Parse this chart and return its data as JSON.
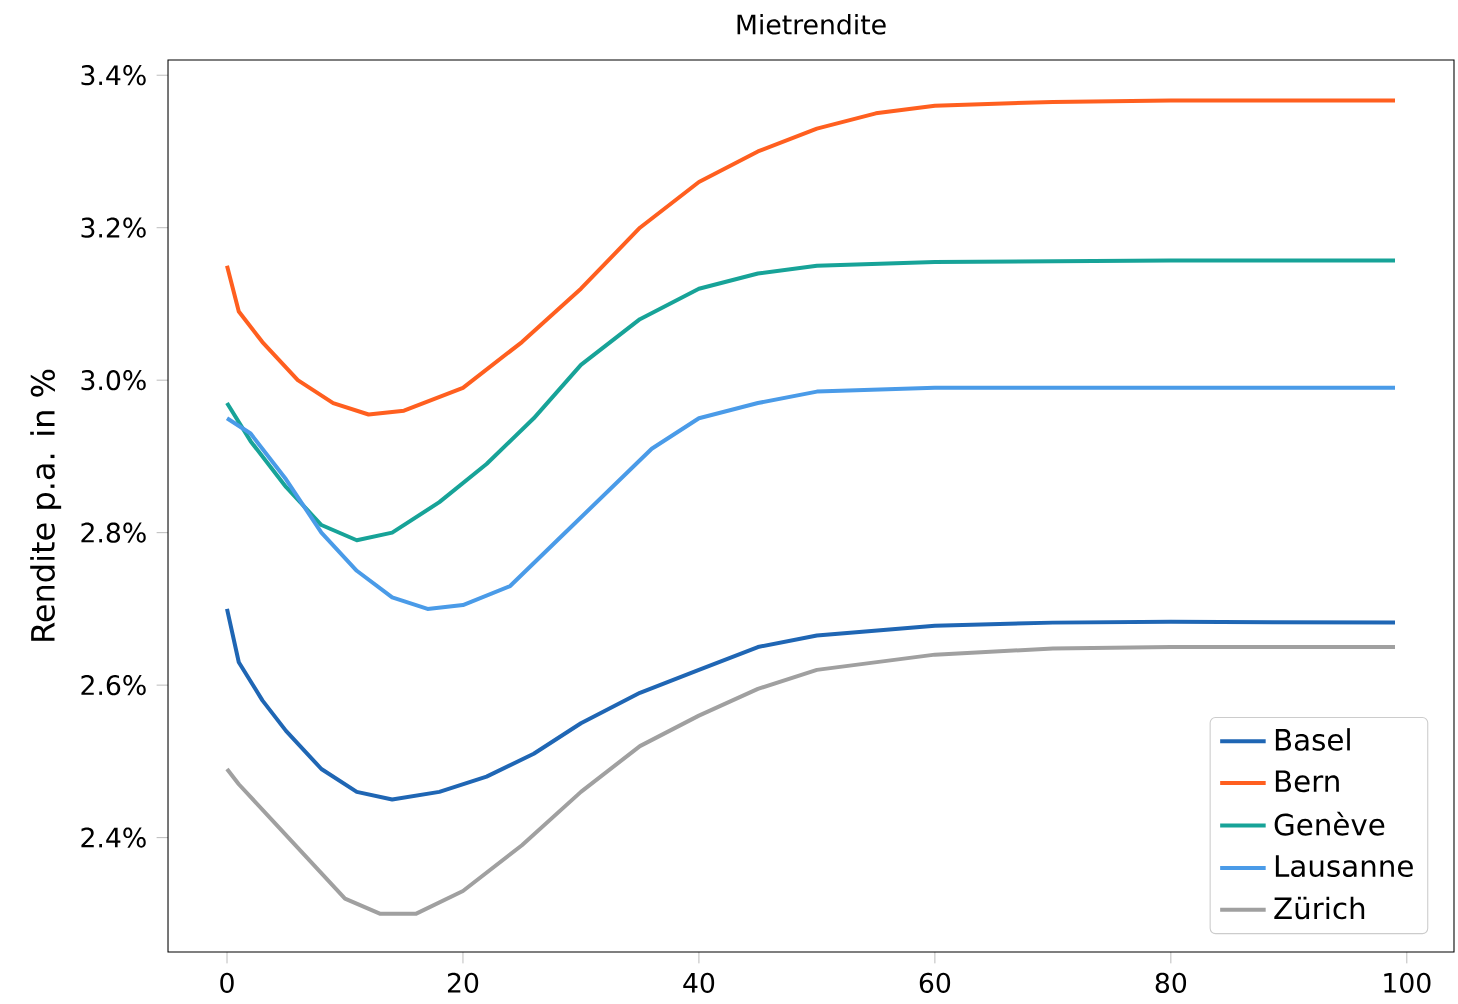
{
  "chart_data": {
    "type": "line",
    "title": "Mietrendite",
    "ylabel": "Rendite p.a. in %",
    "xlim": [
      -5,
      104
    ],
    "ylim": [
      2.25,
      3.42
    ],
    "xticks": [
      0,
      20,
      40,
      60,
      80,
      100
    ],
    "yticks": [
      {
        "value": 2.4,
        "label": "2.4%"
      },
      {
        "value": 2.6,
        "label": "2.6%"
      },
      {
        "value": 2.8,
        "label": "2.8%"
      },
      {
        "value": 3.0,
        "label": "3.0%"
      },
      {
        "value": 3.2,
        "label": "3.2%"
      },
      {
        "value": 3.4,
        "label": "3.4%"
      }
    ],
    "legend": "bottom right",
    "grid": false,
    "marker": "none",
    "line_style": "solid",
    "series": [
      {
        "name": "Basel",
        "color": "#1f66b4",
        "x": [
          0,
          1,
          3,
          5,
          8,
          11,
          14,
          18,
          22,
          26,
          30,
          35,
          40,
          45,
          50,
          60,
          70,
          80,
          99
        ],
        "values": [
          2.7,
          2.63,
          2.58,
          2.54,
          2.49,
          2.46,
          2.45,
          2.46,
          2.48,
          2.51,
          2.55,
          2.59,
          2.62,
          2.65,
          2.665,
          2.678,
          2.682,
          2.683,
          2.682
        ]
      },
      {
        "name": "Bern",
        "color": "#ff5f1f",
        "x": [
          0,
          1,
          3,
          6,
          9,
          12,
          15,
          20,
          25,
          30,
          35,
          40,
          45,
          50,
          55,
          60,
          70,
          80,
          99
        ],
        "values": [
          3.15,
          3.09,
          3.05,
          3.0,
          2.97,
          2.955,
          2.96,
          2.99,
          3.05,
          3.12,
          3.2,
          3.26,
          3.3,
          3.33,
          3.35,
          3.36,
          3.365,
          3.367,
          3.367
        ]
      },
      {
        "name": "Genève",
        "color": "#17a398",
        "x": [
          0,
          2,
          5,
          8,
          11,
          14,
          18,
          22,
          26,
          30,
          35,
          40,
          45,
          50,
          60,
          80,
          99
        ],
        "values": [
          2.97,
          2.92,
          2.86,
          2.81,
          2.79,
          2.8,
          2.84,
          2.89,
          2.95,
          3.02,
          3.08,
          3.12,
          3.14,
          3.15,
          3.155,
          3.157,
          3.157
        ]
      },
      {
        "name": "Lausanne",
        "color": "#4a9be8",
        "x": [
          0,
          2,
          5,
          8,
          11,
          14,
          17,
          20,
          24,
          28,
          32,
          36,
          40,
          45,
          50,
          60,
          99
        ],
        "values": [
          2.95,
          2.93,
          2.87,
          2.8,
          2.75,
          2.715,
          2.7,
          2.705,
          2.73,
          2.79,
          2.85,
          2.91,
          2.95,
          2.97,
          2.985,
          2.99,
          2.99
        ]
      },
      {
        "name": "Zürich",
        "color": "#a0a0a0",
        "x": [
          0,
          1,
          4,
          7,
          10,
          13,
          16,
          20,
          25,
          30,
          35,
          40,
          45,
          50,
          60,
          70,
          80,
          99
        ],
        "values": [
          2.49,
          2.47,
          2.42,
          2.37,
          2.32,
          2.3,
          2.3,
          2.33,
          2.39,
          2.46,
          2.52,
          2.56,
          2.595,
          2.62,
          2.64,
          2.648,
          2.65,
          2.65
        ]
      }
    ]
  }
}
